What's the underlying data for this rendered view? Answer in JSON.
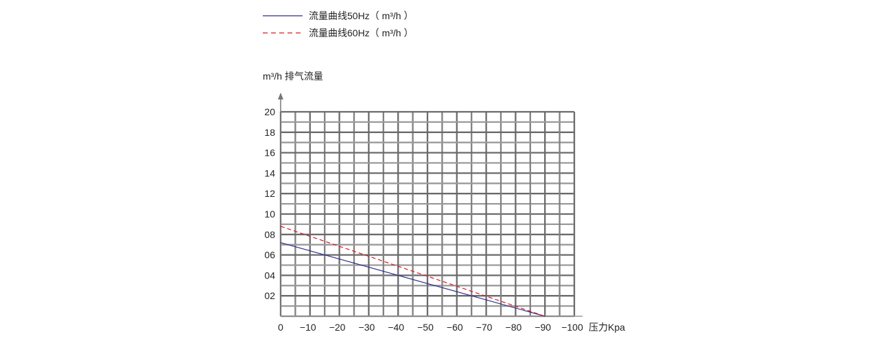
{
  "chart_data": {
    "type": "line",
    "title": "",
    "ylabel": "m³/h 排气流量",
    "xlabel": "压力Kpa",
    "xlim": [
      0,
      -100
    ],
    "ylim": [
      0,
      20
    ],
    "grid": true,
    "legend_position": "top",
    "x_ticks": [
      "0",
      "−10",
      "−20",
      "−30",
      "−40",
      "−50",
      "−60",
      "−70",
      "−80",
      "−90",
      "−100"
    ],
    "x_tick_values": [
      0,
      -10,
      -20,
      -30,
      -40,
      -50,
      -60,
      -70,
      -80,
      -90,
      -100
    ],
    "y_ticks": [
      "02",
      "04",
      "06",
      "08",
      "10",
      "12",
      "14",
      "16",
      "18",
      "20"
    ],
    "y_tick_values": [
      2,
      4,
      6,
      8,
      10,
      12,
      14,
      16,
      18,
      20
    ],
    "series": [
      {
        "name": "流量曲线50Hz（ m³/h ）",
        "color": "#2b2b8c",
        "style": "solid",
        "x": [
          0,
          -90
        ],
        "y": [
          7.2,
          0
        ]
      },
      {
        "name": "流量曲线60Hz（ m³/h ）",
        "color": "#e0141e",
        "style": "dashed",
        "x": [
          0,
          -90
        ],
        "y": [
          8.8,
          0
        ]
      }
    ]
  }
}
